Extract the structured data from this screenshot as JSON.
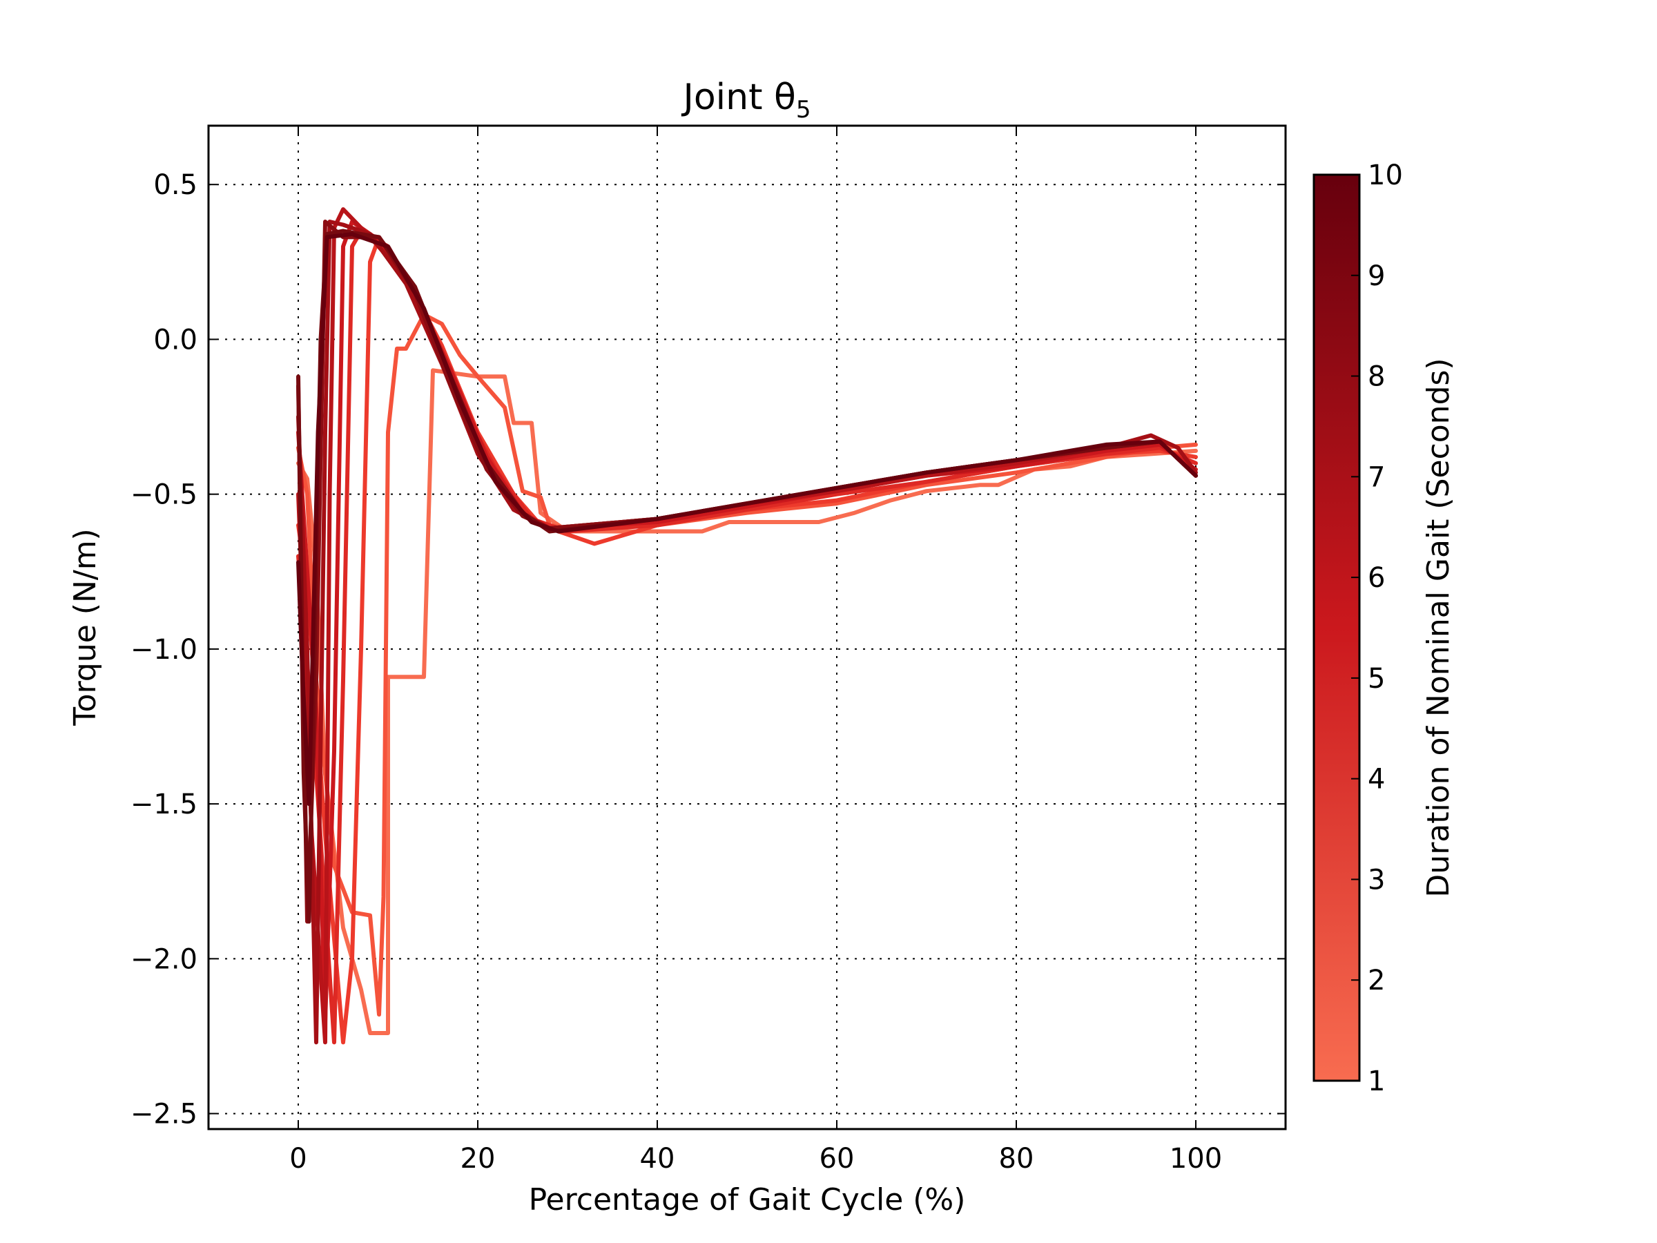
{
  "chart_data": {
    "type": "line",
    "title": "Joint θ",
    "title_subscript": "5",
    "xlabel": "Percentage of Gait Cycle (%)",
    "ylabel": "Torque (N/m)",
    "xlim": [
      -10,
      110
    ],
    "ylim": [
      -2.55,
      0.69
    ],
    "xticks": [
      0,
      20,
      40,
      60,
      80,
      100
    ],
    "xtick_labels": [
      "0",
      "20",
      "40",
      "60",
      "80",
      "100"
    ],
    "yticks": [
      0.5,
      0.0,
      -0.5,
      -1.0,
      -1.5,
      -2.0,
      -2.5
    ],
    "ytick_labels": [
      "0.5",
      "0.0",
      "−0.5",
      "−1.0",
      "−1.5",
      "−2.0",
      "−2.5"
    ],
    "grid": true,
    "colorbar": {
      "label": "Duration of Nominal Gait (Seconds)",
      "min": 1,
      "max": 10,
      "ticks": [
        "1",
        "2",
        "3",
        "4",
        "5",
        "6",
        "7",
        "8",
        "9",
        "10"
      ],
      "color_low": "#f86c50",
      "color_mid": "#cb181d",
      "color_high": "#67000d"
    },
    "series": [
      {
        "duration": 1,
        "color": "#f86c50",
        "points": [
          [
            0,
            -0.4
          ],
          [
            1,
            -0.45
          ],
          [
            2,
            -0.75
          ],
          [
            3,
            -1.4
          ],
          [
            5,
            -1.9
          ],
          [
            7,
            -2.1
          ],
          [
            8,
            -2.24
          ],
          [
            10,
            -2.24
          ],
          [
            10,
            -1.09
          ],
          [
            14,
            -1.09
          ],
          [
            15,
            -0.1
          ],
          [
            20,
            -0.12
          ],
          [
            23,
            -0.12
          ],
          [
            24,
            -0.27
          ],
          [
            26,
            -0.27
          ],
          [
            27,
            -0.56
          ],
          [
            30,
            -0.62
          ],
          [
            40,
            -0.62
          ],
          [
            45,
            -0.62
          ],
          [
            48,
            -0.59
          ],
          [
            52,
            -0.59
          ],
          [
            58,
            -0.59
          ],
          [
            62,
            -0.56
          ],
          [
            66,
            -0.52
          ],
          [
            70,
            -0.49
          ],
          [
            76,
            -0.47
          ],
          [
            78,
            -0.47
          ],
          [
            82,
            -0.42
          ],
          [
            86,
            -0.41
          ],
          [
            90,
            -0.38
          ],
          [
            95,
            -0.37
          ],
          [
            100,
            -0.36
          ]
        ]
      },
      {
        "duration": 2,
        "color": "#f5533b",
        "points": [
          [
            0,
            -0.35
          ],
          [
            1,
            -0.5
          ],
          [
            2,
            -1.1
          ],
          [
            4,
            -1.7
          ],
          [
            6,
            -1.85
          ],
          [
            8,
            -1.86
          ],
          [
            9,
            -2.18
          ],
          [
            9.5,
            -1.8
          ],
          [
            10,
            -0.3
          ],
          [
            11,
            -0.03
          ],
          [
            12,
            -0.03
          ],
          [
            14,
            0.08
          ],
          [
            16,
            0.05
          ],
          [
            18,
            -0.05
          ],
          [
            20,
            -0.12
          ],
          [
            23,
            -0.22
          ],
          [
            25,
            -0.49
          ],
          [
            27,
            -0.51
          ],
          [
            28,
            -0.6
          ],
          [
            30,
            -0.61
          ],
          [
            40,
            -0.6
          ],
          [
            50,
            -0.56
          ],
          [
            60,
            -0.53
          ],
          [
            70,
            -0.47
          ],
          [
            80,
            -0.43
          ],
          [
            90,
            -0.38
          ],
          [
            96,
            -0.35
          ],
          [
            100,
            -0.34
          ]
        ]
      },
      {
        "duration": 3,
        "color": "#ed3a2c",
        "points": [
          [
            0,
            -0.6
          ],
          [
            1,
            -0.8
          ],
          [
            3,
            -1.6
          ],
          [
            5,
            -2.27
          ],
          [
            6,
            -2.0
          ],
          [
            7,
            -1.0
          ],
          [
            8,
            0.25
          ],
          [
            9,
            0.33
          ],
          [
            12,
            0.2
          ],
          [
            16,
            -0.02
          ],
          [
            20,
            -0.3
          ],
          [
            24,
            -0.5
          ],
          [
            27,
            -0.6
          ],
          [
            33,
            -0.66
          ],
          [
            40,
            -0.6
          ],
          [
            50,
            -0.55
          ],
          [
            60,
            -0.52
          ],
          [
            70,
            -0.46
          ],
          [
            80,
            -0.41
          ],
          [
            90,
            -0.37
          ],
          [
            96,
            -0.36
          ],
          [
            100,
            -0.38
          ]
        ]
      },
      {
        "duration": 4,
        "color": "#de2924",
        "points": [
          [
            0,
            -0.7
          ],
          [
            2,
            -1.4
          ],
          [
            4,
            -2.27
          ],
          [
            5,
            -1.1
          ],
          [
            6,
            0.3
          ],
          [
            7,
            0.35
          ],
          [
            10,
            0.3
          ],
          [
            14,
            0.1
          ],
          [
            18,
            -0.2
          ],
          [
            22,
            -0.42
          ],
          [
            26,
            -0.58
          ],
          [
            30,
            -0.62
          ],
          [
            40,
            -0.6
          ],
          [
            50,
            -0.55
          ],
          [
            60,
            -0.5
          ],
          [
            70,
            -0.46
          ],
          [
            80,
            -0.41
          ],
          [
            90,
            -0.37
          ],
          [
            96,
            -0.35
          ],
          [
            100,
            -0.4
          ]
        ]
      },
      {
        "duration": 5,
        "color": "#cb181d",
        "points": [
          [
            0,
            -0.3
          ],
          [
            2,
            -1.2
          ],
          [
            3,
            -2.2
          ],
          [
            4,
            -1.33
          ],
          [
            5,
            0.3
          ],
          [
            6,
            0.38
          ],
          [
            9,
            0.32
          ],
          [
            13,
            0.15
          ],
          [
            17,
            -0.1
          ],
          [
            21,
            -0.38
          ],
          [
            25,
            -0.56
          ],
          [
            28,
            -0.61
          ],
          [
            40,
            -0.59
          ],
          [
            50,
            -0.54
          ],
          [
            60,
            -0.49
          ],
          [
            70,
            -0.44
          ],
          [
            80,
            -0.41
          ],
          [
            90,
            -0.36
          ],
          [
            96,
            -0.34
          ],
          [
            100,
            -0.42
          ]
        ]
      },
      {
        "duration": 6,
        "color": "#b81419",
        "points": [
          [
            0,
            -0.5
          ],
          [
            1.5,
            -1.6
          ],
          [
            3,
            -2.27
          ],
          [
            3.5,
            -0.5
          ],
          [
            4,
            0.36
          ],
          [
            5,
            0.42
          ],
          [
            8,
            0.33
          ],
          [
            12,
            0.2
          ],
          [
            16,
            -0.05
          ],
          [
            20,
            -0.35
          ],
          [
            24,
            -0.55
          ],
          [
            28,
            -0.61
          ],
          [
            40,
            -0.58
          ],
          [
            50,
            -0.53
          ],
          [
            60,
            -0.49
          ],
          [
            70,
            -0.44
          ],
          [
            80,
            -0.4
          ],
          [
            90,
            -0.35
          ],
          [
            96,
            -0.33
          ],
          [
            100,
            -0.44
          ]
        ]
      },
      {
        "duration": 7,
        "color": "#a50f15",
        "points": [
          [
            0,
            -0.25
          ],
          [
            1,
            -1.0
          ],
          [
            2,
            -2.27
          ],
          [
            3,
            -0.3
          ],
          [
            3.5,
            0.38
          ],
          [
            5,
            0.37
          ],
          [
            8,
            0.34
          ],
          [
            12,
            0.18
          ],
          [
            16,
            -0.08
          ],
          [
            20,
            -0.37
          ],
          [
            24,
            -0.55
          ],
          [
            28,
            -0.61
          ],
          [
            40,
            -0.58
          ],
          [
            50,
            -0.53
          ],
          [
            60,
            -0.48
          ],
          [
            70,
            -0.43
          ],
          [
            80,
            -0.39
          ],
          [
            90,
            -0.35
          ],
          [
            95,
            -0.31
          ],
          [
            98,
            -0.35
          ],
          [
            100,
            -0.43
          ]
        ]
      },
      {
        "duration": 8,
        "color": "#8c0c12",
        "points": [
          [
            0,
            -0.15
          ],
          [
            1,
            -1.88
          ],
          [
            2,
            -1.1
          ],
          [
            3,
            0.38
          ],
          [
            5,
            0.33
          ],
          [
            9,
            0.33
          ],
          [
            13,
            0.15
          ],
          [
            17,
            -0.15
          ],
          [
            21,
            -0.42
          ],
          [
            25,
            -0.57
          ],
          [
            28,
            -0.61
          ],
          [
            40,
            -0.58
          ],
          [
            50,
            -0.53
          ],
          [
            60,
            -0.48
          ],
          [
            70,
            -0.43
          ],
          [
            80,
            -0.39
          ],
          [
            90,
            -0.35
          ],
          [
            96,
            -0.33
          ],
          [
            100,
            -0.44
          ]
        ]
      },
      {
        "duration": 9,
        "color": "#770a10",
        "points": [
          [
            0,
            -0.12
          ],
          [
            0.6,
            -1.4
          ],
          [
            1.2,
            -1.88
          ],
          [
            2.5,
            0.0
          ],
          [
            3.2,
            0.34
          ],
          [
            5,
            0.35
          ],
          [
            9,
            0.33
          ],
          [
            13,
            0.17
          ],
          [
            17,
            -0.12
          ],
          [
            21,
            -0.4
          ],
          [
            25,
            -0.56
          ],
          [
            28,
            -0.62
          ],
          [
            40,
            -0.58
          ],
          [
            50,
            -0.53
          ],
          [
            60,
            -0.48
          ],
          [
            70,
            -0.43
          ],
          [
            80,
            -0.39
          ],
          [
            90,
            -0.35
          ],
          [
            96,
            -0.33
          ],
          [
            100,
            -0.44
          ]
        ]
      },
      {
        "duration": 10,
        "color": "#67000d",
        "points": [
          [
            0,
            -0.72
          ],
          [
            0.5,
            -1.1
          ],
          [
            1.2,
            -1.5
          ],
          [
            2.2,
            -0.3
          ],
          [
            3.2,
            0.33
          ],
          [
            6,
            0.34
          ],
          [
            10,
            0.3
          ],
          [
            14,
            0.1
          ],
          [
            18,
            -0.2
          ],
          [
            22,
            -0.46
          ],
          [
            26,
            -0.59
          ],
          [
            29,
            -0.62
          ],
          [
            40,
            -0.58
          ],
          [
            50,
            -0.53
          ],
          [
            60,
            -0.48
          ],
          [
            70,
            -0.43
          ],
          [
            80,
            -0.39
          ],
          [
            90,
            -0.34
          ],
          [
            96,
            -0.33
          ],
          [
            100,
            -0.44
          ]
        ]
      }
    ]
  }
}
